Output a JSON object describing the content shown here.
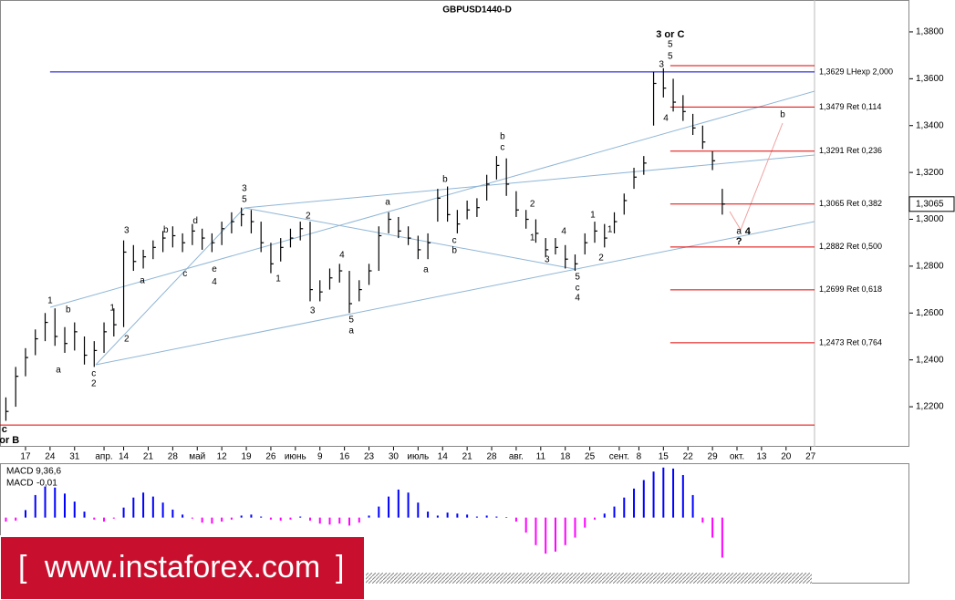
{
  "chart_data": [
    {
      "type": "ohlc",
      "title": "GBPUSD1440-D",
      "color": "#000000",
      "x": [
        -4,
        -2,
        0,
        2,
        4,
        6,
        8,
        10,
        12,
        14,
        16,
        18,
        20,
        22,
        24,
        26,
        28,
        30,
        32,
        34,
        36,
        38,
        40,
        42,
        44,
        46,
        48,
        50,
        52,
        54,
        56,
        58,
        60,
        62,
        64,
        66,
        68,
        70,
        72,
        74,
        76,
        78,
        80,
        82,
        84,
        86,
        88,
        90,
        92,
        94,
        96,
        98,
        100,
        102,
        104,
        106,
        108,
        110,
        112,
        114,
        116,
        118,
        120,
        122,
        124,
        126,
        128,
        130,
        132,
        134,
        136,
        138,
        140,
        142
      ],
      "high": [
        1.224,
        1.237,
        1.245,
        1.253,
        1.26,
        1.262,
        1.254,
        1.256,
        1.25,
        1.248,
        1.256,
        1.262,
        1.291,
        1.289,
        1.287,
        1.291,
        1.295,
        1.297,
        1.294,
        1.298,
        1.296,
        1.294,
        1.299,
        1.303,
        1.305,
        1.304,
        1.299,
        1.29,
        1.292,
        1.296,
        1.299,
        1.299,
        1.274,
        1.279,
        1.281,
        1.278,
        1.274,
        1.281,
        1.297,
        1.303,
        1.301,
        1.297,
        1.293,
        1.294,
        1.313,
        1.314,
        1.304,
        1.308,
        1.309,
        1.319,
        1.327,
        1.326,
        1.312,
        1.304,
        1.3,
        1.292,
        1.292,
        1.289,
        1.285,
        1.294,
        1.299,
        1.298,
        1.303,
        1.311,
        1.322,
        1.327,
        1.363,
        1.3645,
        1.36,
        1.353,
        1.345,
        1.34,
        1.329,
        1.313
      ],
      "low": [
        1.214,
        1.22,
        1.233,
        1.242,
        1.248,
        1.246,
        1.243,
        1.244,
        1.238,
        1.237,
        1.243,
        1.25,
        1.254,
        1.278,
        1.279,
        1.283,
        1.286,
        1.288,
        1.286,
        1.289,
        1.287,
        1.286,
        1.289,
        1.294,
        1.297,
        1.294,
        1.286,
        1.277,
        1.282,
        1.288,
        1.291,
        1.265,
        1.265,
        1.27,
        1.273,
        1.26,
        1.265,
        1.272,
        1.278,
        1.294,
        1.292,
        1.289,
        1.283,
        1.283,
        1.299,
        1.299,
        1.294,
        1.3,
        1.301,
        1.308,
        1.317,
        1.31,
        1.301,
        1.296,
        1.29,
        1.284,
        1.285,
        1.279,
        1.278,
        1.285,
        1.29,
        1.288,
        1.294,
        1.302,
        1.313,
        1.319,
        1.34,
        1.352,
        1.346,
        1.342,
        1.336,
        1.33,
        1.321,
        1.302
      ],
      "close": [
        1.218,
        1.233,
        1.241,
        1.249,
        1.256,
        1.25,
        1.247,
        1.252,
        1.242,
        1.244,
        1.252,
        1.255,
        1.286,
        1.282,
        1.284,
        1.288,
        1.292,
        1.293,
        1.29,
        1.295,
        1.292,
        1.29,
        1.296,
        1.299,
        1.302,
        1.299,
        1.29,
        1.281,
        1.288,
        1.292,
        1.296,
        1.27,
        1.269,
        1.275,
        1.278,
        1.264,
        1.27,
        1.278,
        1.293,
        1.3,
        1.295,
        1.292,
        1.287,
        1.29,
        1.309,
        1.302,
        1.298,
        1.304,
        1.305,
        1.315,
        1.323,
        1.315,
        1.304,
        1.3,
        1.294,
        1.287,
        1.288,
        1.283,
        1.281,
        1.29,
        1.295,
        1.292,
        1.299,
        1.308,
        1.318,
        1.324,
        1.358,
        1.356,
        1.35,
        1.346,
        1.339,
        1.333,
        1.325,
        1.3065
      ],
      "xlim": [
        -5.2,
        160.8
      ],
      "xticks": [
        {
          "value": 0,
          "label": "17"
        },
        {
          "value": 5,
          "label": "24"
        },
        {
          "value": 10,
          "label": "31"
        },
        {
          "value": 16,
          "label": "апр."
        },
        {
          "value": 20,
          "label": "14"
        },
        {
          "value": 25,
          "label": "21"
        },
        {
          "value": 30,
          "label": "28"
        },
        {
          "value": 35,
          "label": "май"
        },
        {
          "value": 40,
          "label": "12"
        },
        {
          "value": 45,
          "label": "19"
        },
        {
          "value": 50,
          "label": "26"
        },
        {
          "value": 55,
          "label": "июнь"
        },
        {
          "value": 60,
          "label": "9"
        },
        {
          "value": 65,
          "label": "16"
        },
        {
          "value": 70,
          "label": "23"
        },
        {
          "value": 75,
          "label": "30"
        },
        {
          "value": 80,
          "label": "июль"
        },
        {
          "value": 85,
          "label": "14"
        },
        {
          "value": 90,
          "label": "21"
        },
        {
          "value": 95,
          "label": "28"
        },
        {
          "value": 100,
          "label": "авг."
        },
        {
          "value": 105,
          "label": "11"
        },
        {
          "value": 110,
          "label": "18"
        },
        {
          "value": 115,
          "label": "25"
        },
        {
          "value": 121,
          "label": "сент."
        },
        {
          "value": 125,
          "label": "8"
        },
        {
          "value": 130,
          "label": "15"
        },
        {
          "value": 135,
          "label": "22"
        },
        {
          "value": 140,
          "label": "29"
        },
        {
          "value": 145,
          "label": "окт."
        },
        {
          "value": 150,
          "label": "13"
        },
        {
          "value": 155,
          "label": "20"
        },
        {
          "value": 160,
          "label": "27"
        }
      ],
      "ylim": [
        1.2029,
        1.3866
      ],
      "yticks": [
        {
          "value": 1.38,
          "label": "1,3800"
        },
        {
          "value": 1.36,
          "label": "1,3600"
        },
        {
          "value": 1.34,
          "label": "1,3400"
        },
        {
          "value": 1.32,
          "label": "1,3200"
        },
        {
          "value": 1.3,
          "label": "1,3000"
        },
        {
          "value": 1.28,
          "label": "1,2800"
        },
        {
          "value": 1.26,
          "label": "1,2600"
        },
        {
          "value": 1.24,
          "label": "1,2400"
        },
        {
          "value": 1.22,
          "label": "1,2200"
        }
      ],
      "current_price": {
        "value": 1.3065,
        "label": "1,3065"
      },
      "levels": [
        {
          "value": 1.3656,
          "x_from": 131.4,
          "color": "#e00000"
        },
        {
          "value": 1.3629,
          "x_from": 5,
          "color": "#0000cc",
          "label": "1,3629 LHexp 2,000"
        },
        {
          "value": 1.3479,
          "x_from": 131.4,
          "color": "#e00000",
          "label": "1,3479 Ret 0,114"
        },
        {
          "value": 1.3291,
          "x_from": 131.4,
          "color": "#e00000",
          "label": "1,3291 Ret 0,236"
        },
        {
          "value": 1.3065,
          "x_from": 131.4,
          "color": "#e00000",
          "label": "1,3065 Ret 0,382"
        },
        {
          "value": 1.2882,
          "x_from": 131.4,
          "color": "#e00000",
          "label": "1,2882 Ret 0,500"
        },
        {
          "value": 1.2699,
          "x_from": 131.4,
          "color": "#e00000",
          "label": "1,2699 Ret 0,618"
        },
        {
          "value": 1.2473,
          "x_from": 131.4,
          "color": "#e00000",
          "label": "1,2473 Ret 0,764"
        },
        {
          "value": 1.2122,
          "x_from": -5.2,
          "color": "#e00000"
        }
      ],
      "annotations": [
        {
          "text": "3 or C",
          "x": 131.4,
          "y": 1.3788,
          "color": "#000000",
          "bold": true
        },
        {
          "text": "5",
          "x": 131.4,
          "y": 1.3746,
          "color": "#0000cc"
        },
        {
          "text": "5",
          "x": 131.4,
          "y": 1.3695,
          "color": "#8b0000"
        },
        {
          "text": "3",
          "x": 129.6,
          "y": 1.366,
          "color": "#8b0000"
        },
        {
          "text": "4",
          "x": 130.5,
          "y": 1.343,
          "color": "#8b0000"
        },
        {
          "text": "b",
          "x": 154.3,
          "y": 1.3446,
          "color": "#0000cc"
        },
        {
          "text": "a",
          "x": 145.4,
          "y": 1.2948,
          "color": "#0000cc"
        },
        {
          "text": "4",
          "x": 147.2,
          "y": 1.2948,
          "color": "#000000",
          "bold": true
        },
        {
          "text": "?",
          "x": 145.4,
          "y": 1.2905,
          "color": "#000000",
          "bold": true
        },
        {
          "text": "b",
          "x": 97.2,
          "y": 1.3352,
          "color": "#8b0000"
        },
        {
          "text": "c",
          "x": 97.2,
          "y": 1.3306,
          "color": "#000000"
        },
        {
          "text": "b",
          "x": 85.5,
          "y": 1.317,
          "color": "#006400"
        },
        {
          "text": "c",
          "x": 87.4,
          "y": 1.2909,
          "color": "#006400"
        },
        {
          "text": "b",
          "x": 87.4,
          "y": 1.2866,
          "color": "#000000"
        },
        {
          "text": "a",
          "x": 73.8,
          "y": 1.3072,
          "color": "#000000"
        },
        {
          "text": "a",
          "x": 81.6,
          "y": 1.2784,
          "color": "#006400"
        },
        {
          "text": "2",
          "x": 103.3,
          "y": 1.3064,
          "color": "#000000"
        },
        {
          "text": "1",
          "x": 103.3,
          "y": 1.292,
          "color": "#000000"
        },
        {
          "text": "3",
          "x": 106.3,
          "y": 1.2827,
          "color": "#000000"
        },
        {
          "text": "4",
          "x": 109.7,
          "y": 1.2948,
          "color": "#000000"
        },
        {
          "text": "5",
          "x": 112.5,
          "y": 1.2753,
          "color": "#000000"
        },
        {
          "text": "c",
          "x": 112.5,
          "y": 1.2706,
          "color": "#000000"
        },
        {
          "text": "4",
          "x": 112.5,
          "y": 1.2663,
          "color": "#0000cc"
        },
        {
          "text": "1",
          "x": 115.6,
          "y": 1.3018,
          "color": "#8b0000"
        },
        {
          "text": "2",
          "x": 117.3,
          "y": 1.2835,
          "color": "#8b0000"
        },
        {
          "text": "1",
          "x": 119.1,
          "y": 1.2955,
          "color": "#ff00ff"
        },
        {
          "text": "3",
          "x": 44.6,
          "y": 1.313,
          "color": "#0000cc"
        },
        {
          "text": "5",
          "x": 44.6,
          "y": 1.3084,
          "color": "#8b0000"
        },
        {
          "text": "2",
          "x": 57.6,
          "y": 1.3014,
          "color": "#000000"
        },
        {
          "text": "1",
          "x": 51.5,
          "y": 1.2745,
          "color": "#000000"
        },
        {
          "text": "3",
          "x": 58.5,
          "y": 1.2609,
          "color": "#000000"
        },
        {
          "text": "4",
          "x": 64.5,
          "y": 1.2846,
          "color": "#000000"
        },
        {
          "text": "5",
          "x": 66.4,
          "y": 1.257,
          "color": "#000000"
        },
        {
          "text": "a",
          "x": 66.4,
          "y": 1.2523,
          "color": "#8b0000"
        },
        {
          "text": "b",
          "x": 28.6,
          "y": 1.2953,
          "color": "#000000"
        },
        {
          "text": "c",
          "x": 32.5,
          "y": 1.2767,
          "color": "#000000"
        },
        {
          "text": "d",
          "x": 34.6,
          "y": 1.2992,
          "color": "#000000"
        },
        {
          "text": "e",
          "x": 38.5,
          "y": 1.2786,
          "color": "#000000"
        },
        {
          "text": "4",
          "x": 38.5,
          "y": 1.2732,
          "color": "#8b0000"
        },
        {
          "text": "3",
          "x": 20.6,
          "y": 1.2951,
          "color": "#8b0000"
        },
        {
          "text": "a",
          "x": 23.8,
          "y": 1.2737,
          "color": "#000000"
        },
        {
          "text": "1",
          "x": 17.7,
          "y": 1.2621,
          "color": "#8b0000"
        },
        {
          "text": "2",
          "x": 20.6,
          "y": 1.2488,
          "color": "#8b0000"
        },
        {
          "text": "b",
          "x": 8.7,
          "y": 1.2613,
          "color": "#8b0000"
        },
        {
          "text": "a",
          "x": 6.7,
          "y": 1.2356,
          "color": "#8b0000"
        },
        {
          "text": "c",
          "x": 13.9,
          "y": 1.234,
          "color": "#000000"
        },
        {
          "text": "2",
          "x": 13.9,
          "y": 1.2298,
          "color": "#0000cc"
        },
        {
          "text": "1",
          "x": 5,
          "y": 1.2652,
          "color": "#0000cc"
        },
        {
          "text": "c",
          "x": -4.3,
          "y": 1.2103,
          "color": "#000000",
          "bold": true
        },
        {
          "text": "or B",
          "x": -3.3,
          "y": 1.2056,
          "color": "#000000",
          "bold": true
        }
      ]
    },
    {
      "type": "histogram",
      "title": "MACD 9,36,6",
      "value_name": "MACD",
      "current_value": {
        "value": -0.01,
        "label": "-0,01"
      },
      "up_color": "#0000ff",
      "down_color": "#ff00ff",
      "x": [
        -4,
        -2,
        0,
        2,
        4,
        6,
        8,
        10,
        12,
        14,
        16,
        18,
        20,
        22,
        24,
        26,
        28,
        30,
        32,
        34,
        36,
        38,
        40,
        42,
        44,
        46,
        48,
        50,
        52,
        54,
        56,
        58,
        60,
        62,
        64,
        66,
        68,
        70,
        72,
        74,
        76,
        78,
        80,
        82,
        84,
        86,
        88,
        90,
        92,
        94,
        96,
        98,
        100,
        102,
        104,
        106,
        108,
        110,
        112,
        114,
        116,
        118,
        120,
        122,
        124,
        126,
        128,
        130,
        132,
        134,
        136,
        138,
        140,
        142
      ],
      "values": [
        -0.0008,
        -0.0006,
        0.0015,
        0.0045,
        0.0062,
        0.006,
        0.0048,
        0.0032,
        0.0012,
        -0.0004,
        -0.0008,
        -0.0002,
        0.002,
        0.004,
        0.005,
        0.0042,
        0.003,
        0.0016,
        0.0006,
        -0.0002,
        -0.001,
        -0.0012,
        -0.0008,
        -0.0004,
        0.0004,
        0.0006,
        0.0002,
        -0.0004,
        -0.0006,
        -0.0004,
        0.0002,
        -0.0006,
        -0.0012,
        -0.0014,
        -0.0012,
        -0.0016,
        -0.001,
        0.0004,
        0.0022,
        0.0042,
        0.0056,
        0.005,
        0.003,
        0.0012,
        0.0004,
        0.001,
        0.0008,
        0.0006,
        0.0002,
        0.0004,
        0.0002,
        0.0001,
        -0.0008,
        -0.003,
        -0.0055,
        -0.0072,
        -0.0068,
        -0.0055,
        -0.004,
        -0.002,
        -0.0004,
        0.0008,
        0.0022,
        0.004,
        0.0058,
        0.0075,
        0.0092,
        0.01,
        0.0098,
        0.0085,
        0.0045,
        -0.001,
        -0.004,
        -0.008
      ],
      "xlim": [
        -5.2,
        160.8
      ],
      "ylim": [
        -0.011,
        0.0105
      ]
    }
  ],
  "watermark": {
    "open": "[",
    "text": "www.instaforex.com",
    "close": "]"
  }
}
